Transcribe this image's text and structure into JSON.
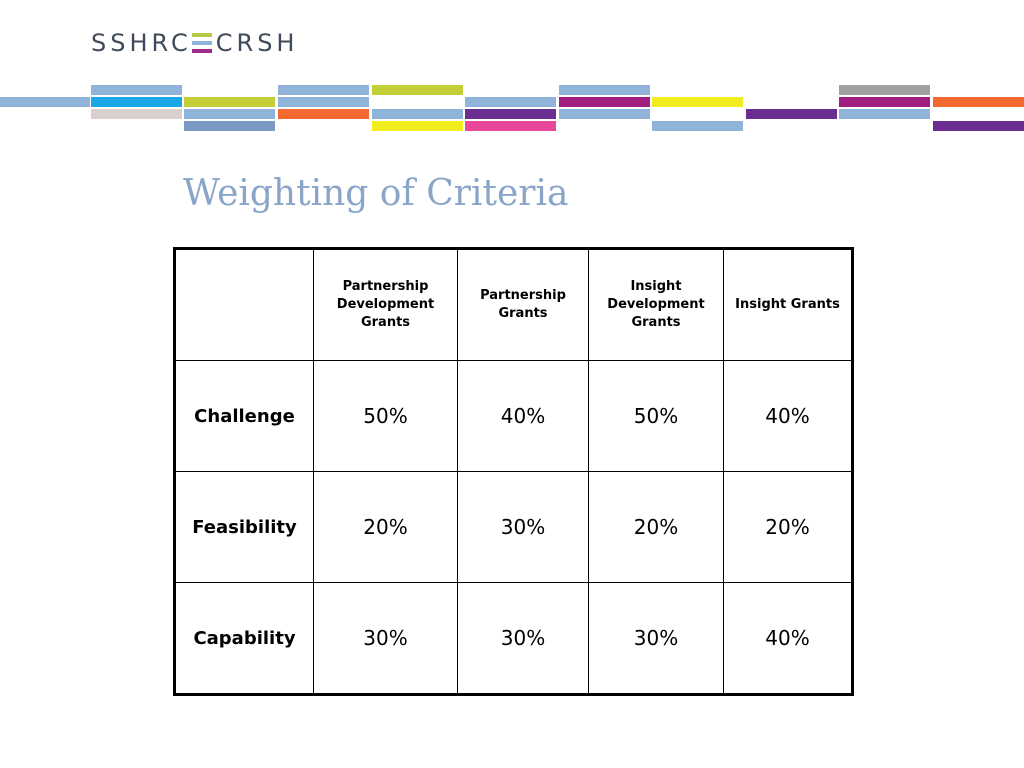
{
  "logo": {
    "left_text": "SSHRC",
    "right_text": "CRSH",
    "mark_colors": [
      "#b9c94b",
      "#8fb3d9",
      "#9d2a8e"
    ]
  },
  "title": "Weighting of Criteria",
  "table": {
    "corner": "",
    "headers": [
      "Partnership Development Grants",
      "Partnership Grants",
      "Insight Development Grants",
      "Insight Grants"
    ],
    "rows": [
      {
        "label": "Challenge",
        "values": [
          "50%",
          "40%",
          "50%",
          "40%"
        ]
      },
      {
        "label": "Feasibility",
        "values": [
          "20%",
          "30%",
          "20%",
          "20%"
        ]
      },
      {
        "label": "Capability",
        "values": [
          "30%",
          "30%",
          "30%",
          "40%"
        ]
      }
    ]
  },
  "colors": {
    "title": "#8aa5c8",
    "light_blue": "#8fb3d9",
    "cyan": "#1aa9e6",
    "lime": "#c4ce37",
    "orange": "#f26a30",
    "yellow": "#f1ec1d",
    "magenta": "#a21d80",
    "purple": "#6b2d91",
    "pink": "#e8479a",
    "grey": "#a0a0a0",
    "pale": "#d9d0cf",
    "steel": "#7a9ac4"
  }
}
